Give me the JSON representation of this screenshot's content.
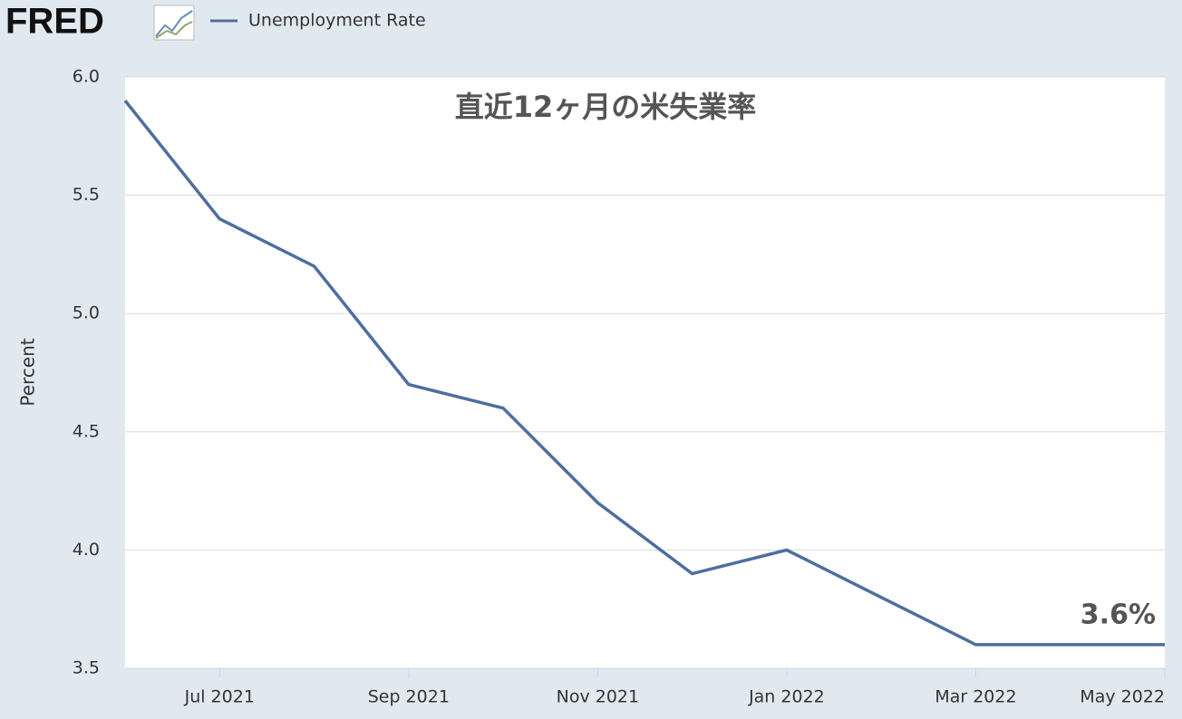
{
  "logo": "FRED",
  "chart_data": {
    "type": "line",
    "title": "直近12ヶ月の米失業率",
    "y_label": "Percent",
    "categories": [
      null,
      "Jul 2021",
      null,
      "Sep 2021",
      null,
      "Nov 2021",
      null,
      "Jan 2022",
      null,
      "Mar 2022",
      null,
      "May 2022"
    ],
    "series": [
      {
        "name": "Unemployment Rate",
        "color": "#4e6e9f",
        "values": [
          5.9,
          5.4,
          5.2,
          4.7,
          4.6,
          4.2,
          3.9,
          4.0,
          3.8,
          3.6,
          3.6,
          3.6
        ],
        "value_labels": [
          null,
          null,
          null,
          null,
          null,
          null,
          null,
          null,
          null,
          null,
          null,
          "3.6%"
        ]
      }
    ],
    "ylim": [
      3.5,
      6.0
    ],
    "yticks": [
      3.5,
      {
        "value": 4,
        "label": "4.0"
      },
      4.5,
      {
        "value": 5,
        "label": "5.0"
      },
      5.5,
      {
        "value": 6,
        "label": "6.0"
      }
    ],
    "grid": true
  }
}
